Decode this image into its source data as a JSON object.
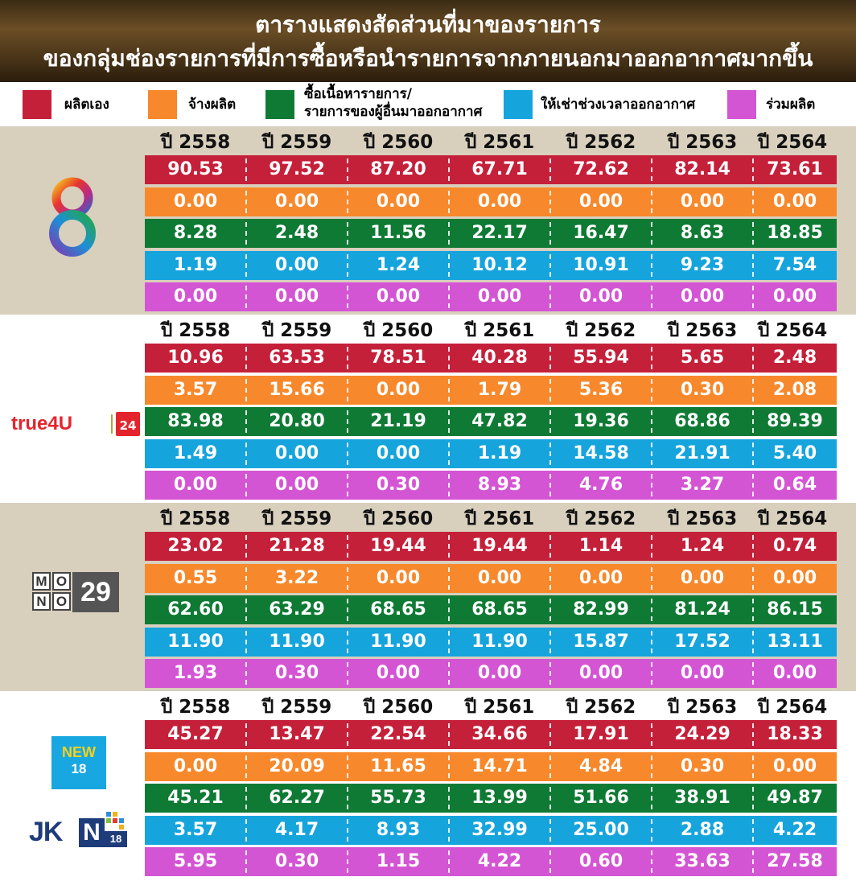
{
  "header": {
    "title_line1": "ตารางแสดงสัดส่วนที่มาของรายการ",
    "title_line2": "ของกลุ่มช่องรายการที่มีการซื้อหรือนำรายการจากภายนอกมาออกอากาศมากขึ้น"
  },
  "legend": [
    {
      "label": "ผลิตเอง",
      "color": "#c5203a"
    },
    {
      "label": "จ้างผลิต",
      "color": "#f7892c"
    },
    {
      "label_line1": "ซื้อเนื้อหารายการ/",
      "label_line2": "รายการของผู้อื่นมาออกอากาศ",
      "color": "#0f7a34"
    },
    {
      "label": "ให้เช่าช่วงเวลาออกอากาศ",
      "color": "#16a4dd"
    },
    {
      "label": "ร่วมผลิต",
      "color": "#d455d4"
    }
  ],
  "colors": {
    "section_bg_alt": "#d8cfbd",
    "section_bg_white": "#ffffff"
  },
  "logos": {
    "true4u_brand": "true4U",
    "true4u_badge": "24",
    "mono_letters": [
      "M",
      "O",
      "N",
      "O"
    ],
    "mono_number": "29",
    "new18_top": "NEW",
    "new18_bottom": "18",
    "jkn_letters": "JK",
    "jkn_n": "N",
    "jkn_number": "18"
  },
  "chart_data": {
    "type": "table",
    "years": [
      "ปี 2558",
      "ปี 2559",
      "ปี 2560",
      "ปี 2561",
      "ปี 2562",
      "ปี 2563",
      "ปี 2564"
    ],
    "rows_order": [
      "ผลิตเอง",
      "จ้างผลิต",
      "ซื้อเนื้อหารายการ/รายการของผู้อื่นมาออกอากาศ",
      "ให้เช่าช่วงเวลาออกอากาศ",
      "ร่วมผลิต"
    ],
    "groups": [
      {
        "logo": "channel-8",
        "rows": [
          [
            "90.53",
            "97.52",
            "87.20",
            "67.71",
            "72.62",
            "82.14",
            "73.61"
          ],
          [
            "0.00",
            "0.00",
            "0.00",
            "0.00",
            "0.00",
            "0.00",
            "0.00"
          ],
          [
            "8.28",
            "2.48",
            "11.56",
            "22.17",
            "16.47",
            "8.63",
            "18.85"
          ],
          [
            "1.19",
            "0.00",
            "1.24",
            "10.12",
            "10.91",
            "9.23",
            "7.54"
          ],
          [
            "0.00",
            "0.00",
            "0.00",
            "0.00",
            "0.00",
            "0.00",
            "0.00"
          ]
        ]
      },
      {
        "logo": "true4u",
        "rows": [
          [
            "10.96",
            "63.53",
            "78.51",
            "40.28",
            "55.94",
            "5.65",
            "2.48"
          ],
          [
            "3.57",
            "15.66",
            "0.00",
            "1.79",
            "5.36",
            "0.30",
            "2.08"
          ],
          [
            "83.98",
            "20.80",
            "21.19",
            "47.82",
            "19.36",
            "68.86",
            "89.39"
          ],
          [
            "1.49",
            "0.00",
            "0.00",
            "1.19",
            "14.58",
            "21.91",
            "5.40"
          ],
          [
            "0.00",
            "0.00",
            "0.30",
            "8.93",
            "4.76",
            "3.27",
            "0.64"
          ]
        ]
      },
      {
        "logo": "mono29",
        "rows": [
          [
            "23.02",
            "21.28",
            "19.44",
            "19.44",
            "1.14",
            "1.24",
            "0.74"
          ],
          [
            "0.55",
            "3.22",
            "0.00",
            "0.00",
            "0.00",
            "0.00",
            "0.00"
          ],
          [
            "62.60",
            "63.29",
            "68.65",
            "68.65",
            "82.99",
            "81.24",
            "86.15"
          ],
          [
            "11.90",
            "11.90",
            "11.90",
            "11.90",
            "15.87",
            "17.52",
            "13.11"
          ],
          [
            "1.93",
            "0.30",
            "0.00",
            "0.00",
            "0.00",
            "0.00",
            "0.00"
          ]
        ]
      },
      {
        "logo": "new18-jkn18",
        "rows": [
          [
            "45.27",
            "13.47",
            "22.54",
            "34.66",
            "17.91",
            "24.29",
            "18.33"
          ],
          [
            "0.00",
            "20.09",
            "11.65",
            "14.71",
            "4.84",
            "0.30",
            "0.00"
          ],
          [
            "45.21",
            "62.27",
            "55.73",
            "13.99",
            "51.66",
            "38.91",
            "49.87"
          ],
          [
            "3.57",
            "4.17",
            "8.93",
            "32.99",
            "25.00",
            "2.88",
            "4.22"
          ],
          [
            "5.95",
            "0.30",
            "1.15",
            "4.22",
            "0.60",
            "33.63",
            "27.58"
          ]
        ]
      }
    ]
  }
}
